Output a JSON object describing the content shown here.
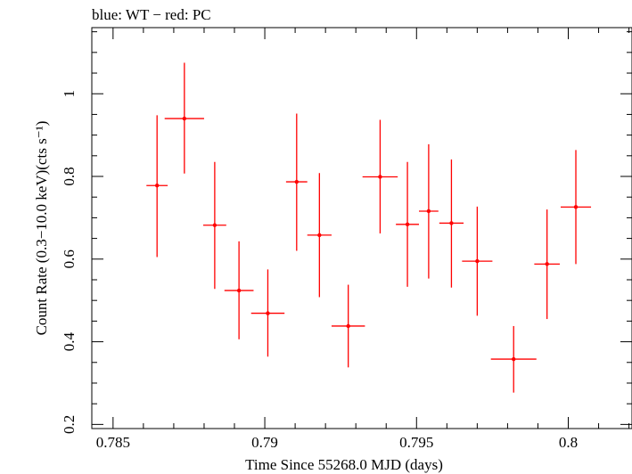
{
  "chart_data": {
    "type": "scatter",
    "title": "blue: WT − red: PC",
    "xlabel": "Time Since 55268.0 MJD (days)",
    "ylabel": "Count Rate (0.3−10.0 keV)(cts s⁻¹)",
    "xlim": [
      0.7843,
      0.8021
    ],
    "ylim": [
      0.19,
      1.16
    ],
    "xticks": [
      0.785,
      0.79,
      0.795,
      0.8
    ],
    "xtick_labels": [
      "0.785",
      "0.79",
      "0.795",
      "0.8"
    ],
    "yticks": [
      0.2,
      0.4,
      0.6,
      0.8,
      1.0
    ],
    "ytick_labels": [
      "0.2",
      "0.4",
      "0.6",
      "0.8",
      "1"
    ],
    "grid": false,
    "series": [
      {
        "color": "#ff0000",
        "points": [
          {
            "x": 0.78645,
            "xerr": 0.00035,
            "y": 0.778,
            "ylo": 0.605,
            "yhi": 0.948
          },
          {
            "x": 0.78735,
            "xerr": 0.00065,
            "y": 0.94,
            "ylo": 0.807,
            "yhi": 1.075
          },
          {
            "x": 0.78835,
            "xerr": 0.00038,
            "y": 0.682,
            "ylo": 0.528,
            "yhi": 0.835
          },
          {
            "x": 0.78915,
            "xerr": 0.00048,
            "y": 0.524,
            "ylo": 0.406,
            "yhi": 0.643
          },
          {
            "x": 0.7901,
            "xerr": 0.00055,
            "y": 0.469,
            "ylo": 0.364,
            "yhi": 0.575
          },
          {
            "x": 0.79105,
            "xerr": 0.00035,
            "y": 0.787,
            "ylo": 0.62,
            "yhi": 0.952
          },
          {
            "x": 0.7918,
            "xerr": 0.0004,
            "y": 0.658,
            "ylo": 0.508,
            "yhi": 0.808
          },
          {
            "x": 0.79275,
            "xerr": 0.00055,
            "y": 0.438,
            "ylo": 0.338,
            "yhi": 0.538
          },
          {
            "x": 0.7938,
            "xerr": 0.00058,
            "y": 0.799,
            "ylo": 0.662,
            "yhi": 0.937
          },
          {
            "x": 0.7947,
            "xerr": 0.00038,
            "y": 0.684,
            "ylo": 0.533,
            "yhi": 0.835
          },
          {
            "x": 0.7954,
            "xerr": 0.00032,
            "y": 0.716,
            "ylo": 0.553,
            "yhi": 0.878
          },
          {
            "x": 0.79615,
            "xerr": 0.0004,
            "y": 0.687,
            "ylo": 0.531,
            "yhi": 0.841
          },
          {
            "x": 0.797,
            "xerr": 0.0005,
            "y": 0.595,
            "ylo": 0.463,
            "yhi": 0.727
          },
          {
            "x": 0.7982,
            "xerr": 0.00075,
            "y": 0.358,
            "ylo": 0.277,
            "yhi": 0.438
          },
          {
            "x": 0.7993,
            "xerr": 0.00042,
            "y": 0.588,
            "ylo": 0.455,
            "yhi": 0.72
          },
          {
            "x": 0.80025,
            "xerr": 0.0005,
            "y": 0.726,
            "ylo": 0.588,
            "yhi": 0.864
          }
        ]
      }
    ]
  }
}
